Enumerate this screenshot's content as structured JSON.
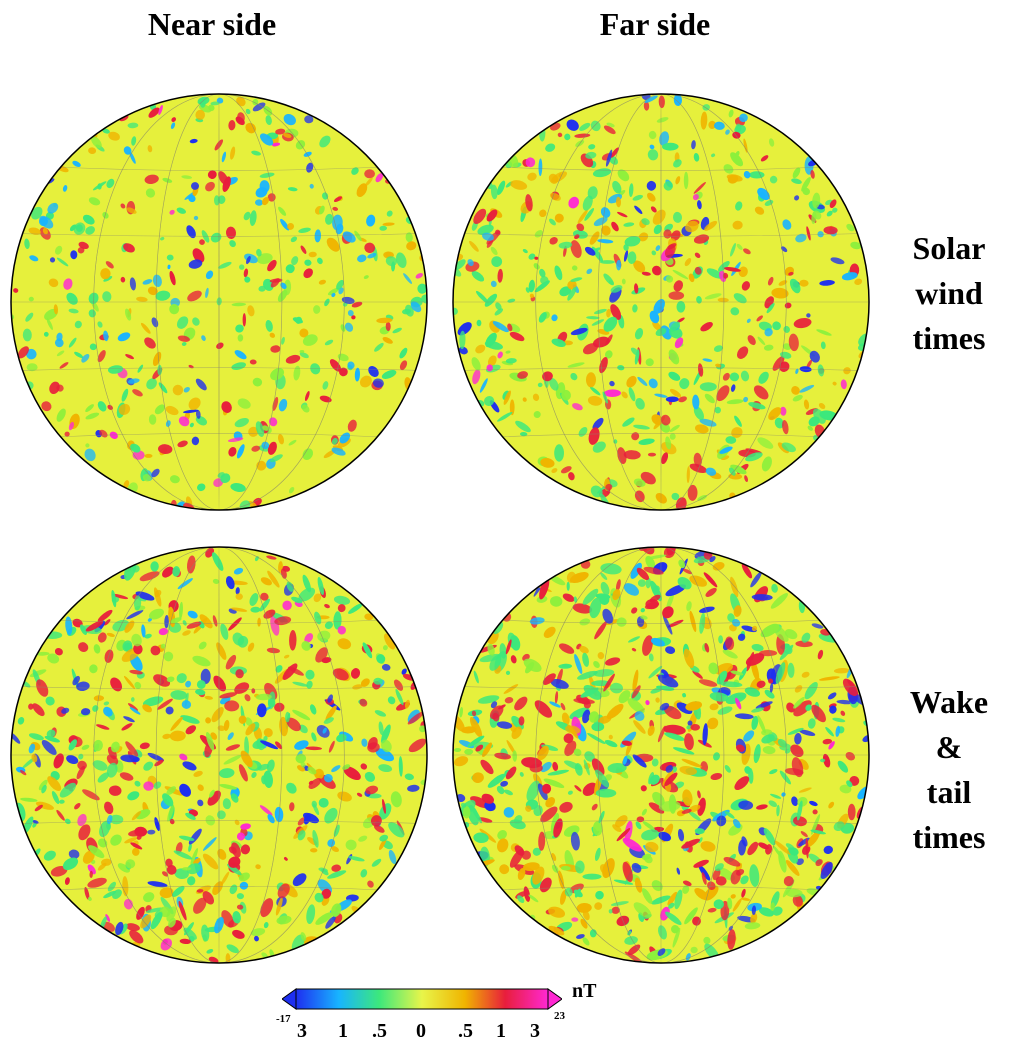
{
  "columns": {
    "left": "Near side",
    "right": "Far side"
  },
  "rows": {
    "top": [
      "Solar",
      "wind",
      "times"
    ],
    "bottom": [
      "Wake",
      "&",
      "tail",
      "times"
    ]
  },
  "colorbar": {
    "unit": "nT",
    "min_label": "-17",
    "max_label": "23",
    "tick_labels": [
      "3",
      "1",
      ".5",
      "0",
      ".5",
      "1",
      "3"
    ],
    "colors": [
      "#1e2ff0",
      "#18b4ff",
      "#3ce87c",
      "#e8f54a",
      "#f0b400",
      "#e81e3c",
      "#ff28d2"
    ]
  },
  "panels": [
    {
      "id": "near-solar-wind",
      "intensity": 0.35,
      "seed": 11
    },
    {
      "id": "far-solar-wind",
      "intensity": 0.55,
      "seed": 23
    },
    {
      "id": "near-wake-tail",
      "intensity": 0.75,
      "seed": 37
    },
    {
      "id": "far-wake-tail",
      "intensity": 0.9,
      "seed": 51
    }
  ]
}
